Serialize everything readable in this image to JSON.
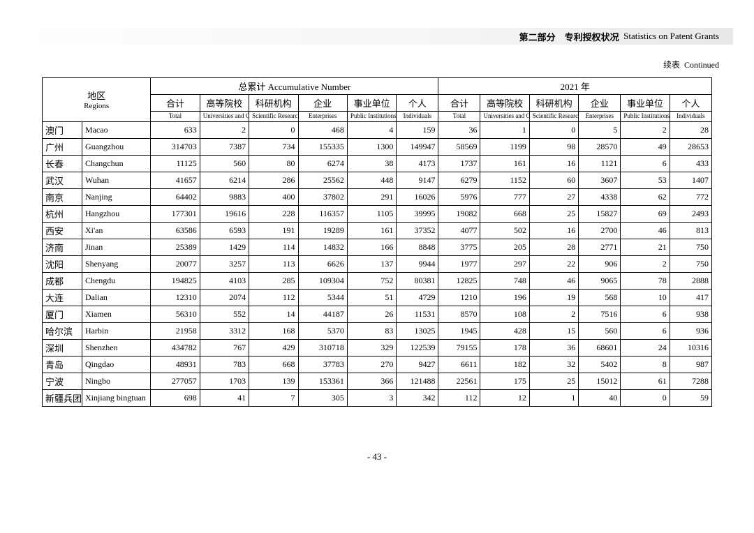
{
  "header": {
    "section_cn": "第二部分　专利授权状况",
    "section_en": "Statistics on Patent Grants"
  },
  "continued": {
    "cn": "续表",
    "en": "Continued"
  },
  "page_number": "- 43 -",
  "table": {
    "region_label_cn": "地区",
    "region_label_en": "Regions",
    "group_acc_cn": "总累计",
    "group_acc_en": "Accumulative Number",
    "group_year_cn": "2021 年",
    "cols_cn": [
      "合计",
      "高等院校",
      "科研机构",
      "企业",
      "事业单位",
      "个人"
    ],
    "cols_en": [
      "Total",
      "Universities and Colleges",
      "Scientific Research Institutes",
      "Enterprises",
      "Public Institutions",
      "Individuals"
    ],
    "rows": [
      {
        "cn": "澳门",
        "en": "Macao",
        "acc": [
          633,
          2,
          0,
          468,
          4,
          159
        ],
        "yr": [
          36,
          1,
          0,
          5,
          2,
          28
        ]
      },
      {
        "cn": "广州",
        "en": "Guangzhou",
        "acc": [
          314703,
          7387,
          734,
          155335,
          1300,
          149947
        ],
        "yr": [
          58569,
          1199,
          98,
          28570,
          49,
          28653
        ]
      },
      {
        "cn": "长春",
        "en": "Changchun",
        "acc": [
          11125,
          560,
          80,
          6274,
          38,
          4173
        ],
        "yr": [
          1737,
          161,
          16,
          1121,
          6,
          433
        ]
      },
      {
        "cn": "武汉",
        "en": "Wuhan",
        "acc": [
          41657,
          6214,
          286,
          25562,
          448,
          9147
        ],
        "yr": [
          6279,
          1152,
          60,
          3607,
          53,
          1407
        ]
      },
      {
        "cn": "南京",
        "en": "Nanjing",
        "acc": [
          64402,
          9883,
          400,
          37802,
          291,
          16026
        ],
        "yr": [
          5976,
          777,
          27,
          4338,
          62,
          772
        ]
      },
      {
        "cn": "杭州",
        "en": "Hangzhou",
        "acc": [
          177301,
          19616,
          228,
          116357,
          1105,
          39995
        ],
        "yr": [
          19082,
          668,
          25,
          15827,
          69,
          2493
        ]
      },
      {
        "cn": "西安",
        "en": "Xi'an",
        "acc": [
          63586,
          6593,
          191,
          19289,
          161,
          37352
        ],
        "yr": [
          4077,
          502,
          16,
          2700,
          46,
          813
        ]
      },
      {
        "cn": "济南",
        "en": "Jinan",
        "acc": [
          25389,
          1429,
          114,
          14832,
          166,
          8848
        ],
        "yr": [
          3775,
          205,
          28,
          2771,
          21,
          750
        ]
      },
      {
        "cn": "沈阳",
        "en": "Shenyang",
        "acc": [
          20077,
          3257,
          113,
          6626,
          137,
          9944
        ],
        "yr": [
          1977,
          297,
          22,
          906,
          2,
          750
        ]
      },
      {
        "cn": "成都",
        "en": "Chengdu",
        "acc": [
          194825,
          4103,
          285,
          109304,
          752,
          80381
        ],
        "yr": [
          12825,
          748,
          46,
          9065,
          78,
          2888
        ]
      },
      {
        "cn": "大连",
        "en": "Dalian",
        "acc": [
          12310,
          2074,
          112,
          5344,
          51,
          4729
        ],
        "yr": [
          1210,
          196,
          19,
          568,
          10,
          417
        ]
      },
      {
        "cn": "厦门",
        "en": "Xiamen",
        "acc": [
          56310,
          552,
          14,
          44187,
          26,
          11531
        ],
        "yr": [
          8570,
          108,
          2,
          7516,
          6,
          938
        ]
      },
      {
        "cn": "哈尔滨",
        "en": "Harbin",
        "acc": [
          21958,
          3312,
          168,
          5370,
          83,
          13025
        ],
        "yr": [
          1945,
          428,
          15,
          560,
          6,
          936
        ]
      },
      {
        "cn": "深圳",
        "en": "Shenzhen",
        "acc": [
          434782,
          767,
          429,
          310718,
          329,
          122539
        ],
        "yr": [
          79155,
          178,
          36,
          68601,
          24,
          10316
        ]
      },
      {
        "cn": "青岛",
        "en": "Qingdao",
        "acc": [
          48931,
          783,
          668,
          37783,
          270,
          9427
        ],
        "yr": [
          6611,
          182,
          32,
          5402,
          8,
          987
        ]
      },
      {
        "cn": "宁波",
        "en": "Ningbo",
        "acc": [
          277057,
          1703,
          139,
          153361,
          366,
          121488
        ],
        "yr": [
          22561,
          175,
          25,
          15012,
          61,
          7288
        ]
      },
      {
        "cn": "新疆兵团",
        "en": "Xinjiang bingtuan",
        "acc": [
          698,
          41,
          7,
          305,
          3,
          342
        ],
        "yr": [
          112,
          12,
          1,
          40,
          0,
          59
        ]
      }
    ]
  }
}
